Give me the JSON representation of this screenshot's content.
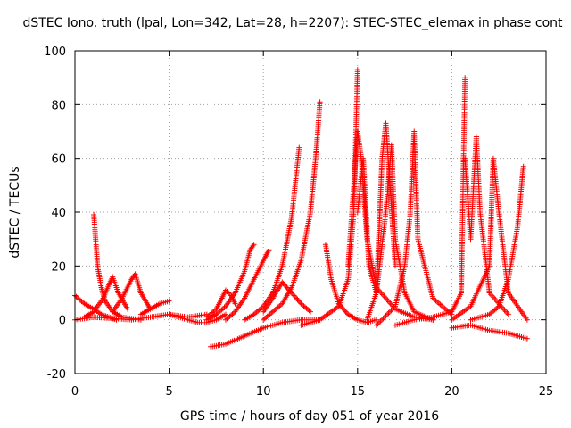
{
  "chart_data": {
    "type": "scatter",
    "title": "dSTEC Iono. truth (lpal, Lon=342, Lat=28, h=2207): STEC-STEC_elemax in phase cont",
    "xlabel": "GPS time / hours of day 051 of year 2016",
    "ylabel": "dSTEC  / TECUs",
    "xlim": [
      0,
      25
    ],
    "ylim": [
      -20,
      100
    ],
    "xticks": [
      0,
      5,
      10,
      15,
      20,
      25
    ],
    "yticks": [
      -20,
      0,
      20,
      40,
      60,
      80,
      100
    ],
    "grid": true,
    "marker": "+",
    "color": "#ff0000",
    "series": [
      {
        "x": [
          0.0,
          0.5,
          1.0,
          1.4,
          1.8,
          2.2
        ],
        "y": [
          9,
          6,
          4,
          2,
          1,
          0
        ]
      },
      {
        "x": [
          1.0,
          1.1,
          1.2,
          1.4,
          1.6,
          2.0,
          2.5,
          3.0,
          3.5
        ],
        "y": [
          39,
          30,
          20,
          12,
          7,
          3,
          1,
          0.5,
          0
        ]
      },
      {
        "x": [
          0.5,
          1.0,
          1.5,
          1.8,
          2.0,
          2.3,
          2.8
        ],
        "y": [
          1,
          3,
          8,
          13,
          16,
          10,
          4
        ]
      },
      {
        "x": [
          2.0,
          2.5,
          3.0,
          3.2,
          3.5,
          4.0
        ],
        "y": [
          3,
          8,
          15,
          17,
          10,
          4
        ]
      },
      {
        "x": [
          3.5,
          4.0,
          4.5,
          5.0
        ],
        "y": [
          2,
          4,
          6,
          7
        ]
      },
      {
        "x": [
          0.0,
          1.0,
          2.0,
          3.0,
          4.0,
          5.0,
          6.0,
          7.0
        ],
        "y": [
          0,
          1,
          0.5,
          0,
          1,
          2,
          1,
          2
        ]
      },
      {
        "x": [
          5.0,
          5.5,
          6.0,
          6.5,
          7.0,
          7.5,
          8.0
        ],
        "y": [
          2,
          1,
          0,
          -1,
          -1,
          0,
          2
        ]
      },
      {
        "x": [
          7.0,
          7.5,
          7.8,
          8.0,
          8.3,
          8.5
        ],
        "y": [
          1,
          4,
          8,
          11,
          9,
          6
        ]
      },
      {
        "x": [
          7.2,
          8.0,
          9.0,
          10.0,
          11.0,
          12.0,
          13.0
        ],
        "y": [
          -10,
          -9,
          -6,
          -3,
          -1,
          0,
          0
        ]
      },
      {
        "x": [
          7.0,
          7.5,
          8.0,
          8.5,
          9.0,
          9.3,
          9.5
        ],
        "y": [
          0,
          2,
          5,
          10,
          18,
          26,
          28
        ]
      },
      {
        "x": [
          8.0,
          8.5,
          9.0,
          9.5,
          10.0,
          10.3
        ],
        "y": [
          0,
          3,
          8,
          15,
          22,
          26
        ]
      },
      {
        "x": [
          9.0,
          9.5,
          10.0,
          10.5,
          11.0,
          11.5,
          11.9
        ],
        "y": [
          0,
          2,
          5,
          10,
          20,
          38,
          64
        ]
      },
      {
        "x": [
          10.0,
          10.5,
          11.0,
          11.5,
          12.0,
          12.5,
          12.8,
          13.0
        ],
        "y": [
          0,
          3,
          6,
          12,
          22,
          40,
          62,
          81
        ]
      },
      {
        "x": [
          10.0,
          10.5,
          11.0,
          11.5,
          12.0,
          12.5
        ],
        "y": [
          3,
          8,
          14,
          10,
          6,
          3
        ]
      },
      {
        "x": [
          13.3,
          13.6,
          14.0,
          14.5,
          15.0,
          15.5,
          16.0
        ],
        "y": [
          28,
          15,
          6,
          2,
          0,
          -1,
          0
        ]
      },
      {
        "x": [
          12.0,
          13.0,
          14.0,
          14.5,
          14.8,
          15.0
        ],
        "y": [
          -2,
          0,
          5,
          15,
          40,
          93
        ]
      },
      {
        "x": [
          14.5,
          14.8,
          15.0,
          15.2,
          15.5,
          16.0,
          17.0,
          18.0,
          19.0
        ],
        "y": [
          20,
          50,
          70,
          60,
          30,
          12,
          4,
          1,
          0
        ]
      },
      {
        "x": [
          15.0,
          15.3,
          15.6,
          16.0,
          16.3,
          16.5,
          17.0
        ],
        "y": [
          40,
          60,
          20,
          10,
          60,
          73,
          20
        ]
      },
      {
        "x": [
          15.5,
          16.0,
          16.5,
          16.8,
          17.0,
          17.5,
          18.0,
          19.0
        ],
        "y": [
          0,
          10,
          40,
          65,
          30,
          10,
          3,
          0
        ]
      },
      {
        "x": [
          16.0,
          17.0,
          17.5,
          17.8,
          18.0,
          18.2,
          19.0,
          20.0
        ],
        "y": [
          -2,
          5,
          20,
          40,
          70,
          30,
          8,
          2
        ]
      },
      {
        "x": [
          17.0,
          18.0,
          19.0,
          20.0,
          20.5,
          20.7
        ],
        "y": [
          -2,
          0,
          1,
          3,
          10,
          90
        ]
      },
      {
        "x": [
          20.7,
          21.0,
          21.3,
          21.5,
          22.0,
          23.0
        ],
        "y": [
          60,
          30,
          68,
          40,
          10,
          2
        ]
      },
      {
        "x": [
          20.0,
          21.0,
          22.0,
          22.2,
          22.5,
          23.0,
          24.0
        ],
        "y": [
          0,
          5,
          20,
          60,
          40,
          10,
          0
        ]
      },
      {
        "x": [
          21.0,
          22.0,
          22.5,
          23.0,
          23.5,
          23.8
        ],
        "y": [
          0,
          2,
          5,
          15,
          35,
          57
        ]
      },
      {
        "x": [
          20.0,
          21.0,
          22.0,
          23.0,
          24.0
        ],
        "y": [
          -3,
          -2,
          -4,
          -5,
          -7
        ]
      }
    ]
  }
}
